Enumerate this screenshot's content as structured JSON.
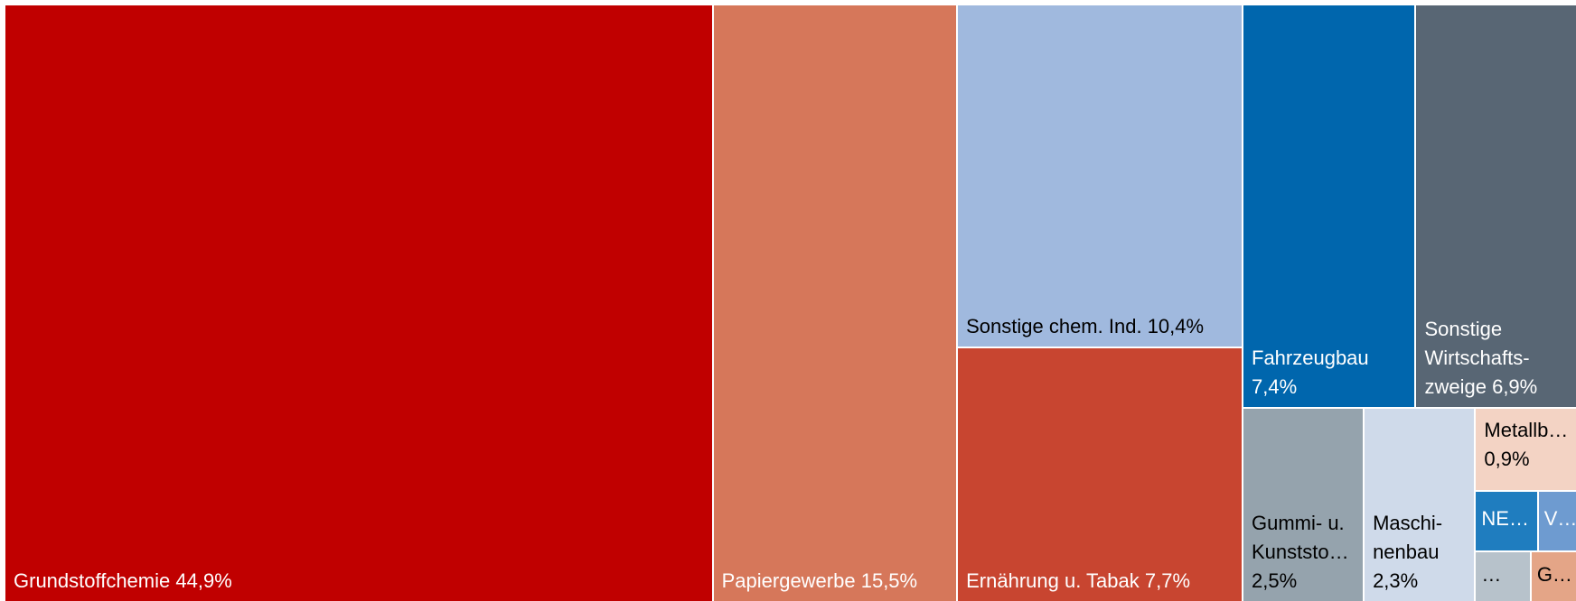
{
  "chart_data": {
    "type": "treemap",
    "categories": [
      "Grundstoffchemie",
      "Papiergewerbe",
      "Sonstige chem. Ind.",
      "Ernährung u. Tabak",
      "Fahrzeugbau",
      "Sonstige Wirtschafts­zweige",
      "Gummi- u. Kunststo…",
      "Maschi­nenbau",
      "Metallb…",
      "NE…",
      "V…",
      "…",
      "G…"
    ],
    "values": [
      44.9,
      15.5,
      10.4,
      7.7,
      7.4,
      6.9,
      2.5,
      2.3,
      0.9,
      0.4,
      0.25,
      0.3,
      0.25
    ],
    "value_labels": [
      "44,9%",
      "15,5%",
      "10,4%",
      "7,7%",
      "7,4%",
      "6,9%",
      "2,5%",
      "2,3%",
      "0,9%",
      null,
      null,
      null,
      null
    ],
    "colors": [
      "#c00000",
      "#d6775a",
      "#a0b9de",
      "#c84530",
      "#0066ad",
      "#586674",
      "#95a3ad",
      "#cfdaea",
      "#f3d3c4",
      "#1f7dbf",
      "#6e9bd0",
      "#b7c2cb",
      "#e4a587"
    ]
  }
}
